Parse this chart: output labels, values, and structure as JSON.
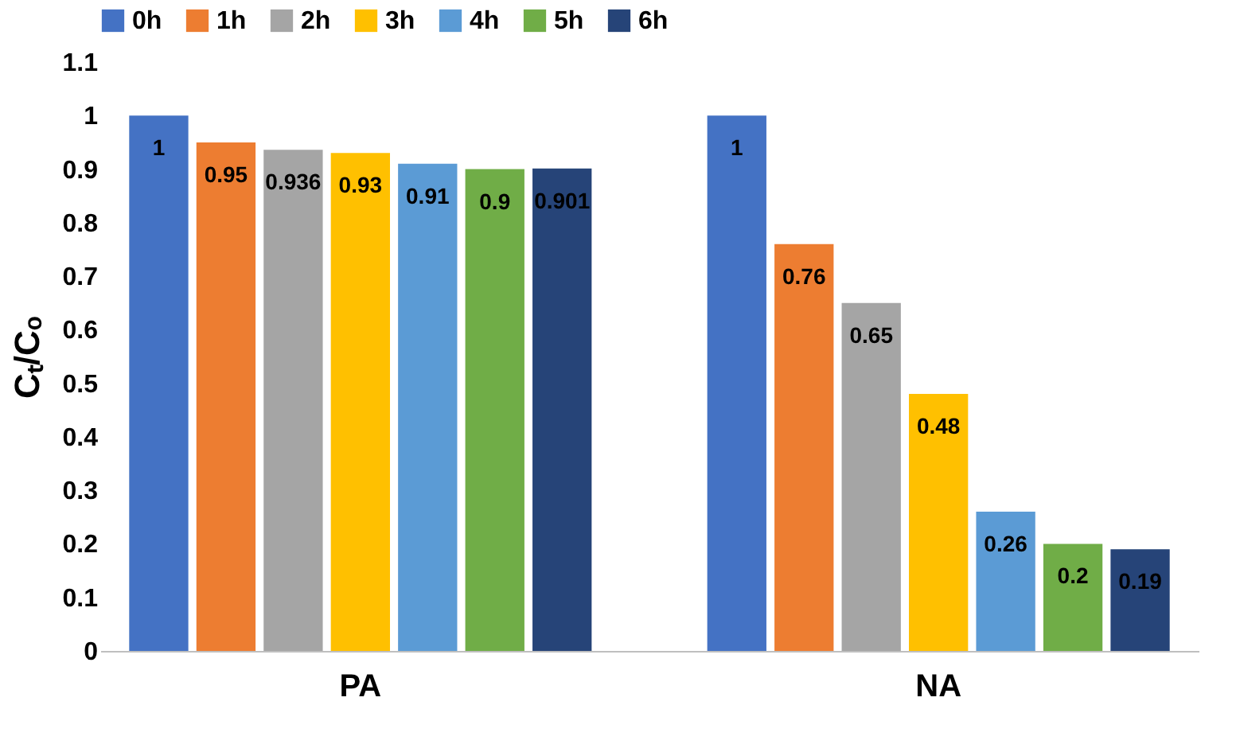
{
  "chart_data": {
    "type": "bar",
    "ylabel": "Cₜ/Cₒ",
    "categories": [
      "PA",
      "NA"
    ],
    "series": [
      {
        "name": "0h",
        "color": "#4472c4",
        "values": [
          1,
          1
        ]
      },
      {
        "name": "1h",
        "color": "#ed7d31",
        "values": [
          0.95,
          0.76
        ]
      },
      {
        "name": "2h",
        "color": "#a5a5a5",
        "values": [
          0.936,
          0.65
        ]
      },
      {
        "name": "3h",
        "color": "#ffc000",
        "values": [
          0.93,
          0.48
        ]
      },
      {
        "name": "4h",
        "color": "#5b9bd5",
        "values": [
          0.91,
          0.26
        ]
      },
      {
        "name": "5h",
        "color": "#70ad47",
        "values": [
          0.9,
          0.2
        ]
      },
      {
        "name": "6h",
        "color": "#264478",
        "values": [
          0.901,
          0.19
        ]
      }
    ],
    "ylim": [
      0,
      1.1
    ],
    "yticks": [
      0,
      0.1,
      0.2,
      0.3,
      0.4,
      0.5,
      0.6,
      0.7,
      0.8,
      0.9,
      1,
      1.1
    ],
    "data_labels": true,
    "legend": "top",
    "grid": false
  }
}
